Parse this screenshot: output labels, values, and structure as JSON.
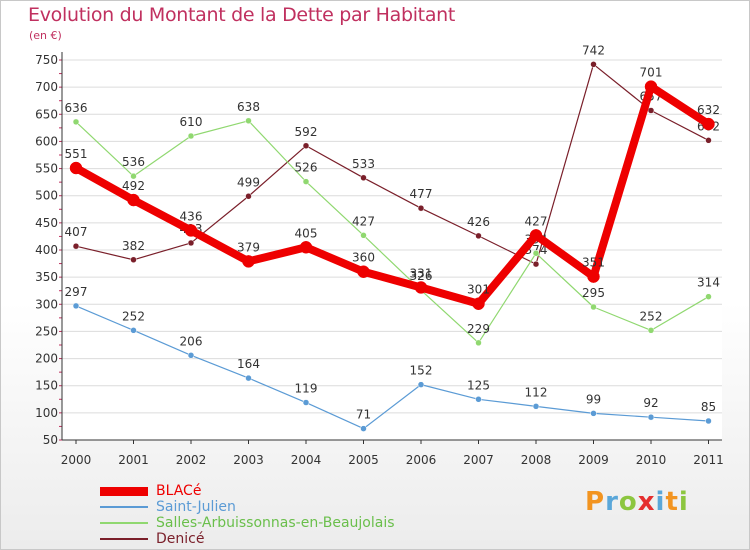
{
  "header": {
    "title": "Evolution du Montant de la Dette par Habitant",
    "unit": "(en €)"
  },
  "logo": {
    "text": "Proxiti",
    "colors": [
      "#f29420",
      "#5aa7d9",
      "#8cc63f",
      "#e52f2f",
      "#5aa7d9",
      "#f29420",
      "#8cc63f"
    ]
  },
  "chart_data": {
    "type": "line",
    "title": "Evolution du Montant de la Dette par Habitant",
    "ylabel": "(en €)",
    "xlabel": "",
    "x": [
      "2000",
      "2001",
      "2002",
      "2003",
      "2004",
      "2005",
      "2006",
      "2007",
      "2008",
      "2009",
      "2010",
      "2011"
    ],
    "ylim": [
      50,
      750
    ],
    "yticks": [
      50,
      100,
      150,
      200,
      250,
      300,
      350,
      400,
      450,
      500,
      550,
      600,
      650,
      700,
      750
    ],
    "grid": "horizontal",
    "legend": "bottom-left",
    "series": [
      {
        "name": "Denicé",
        "color": "#7a1f2a",
        "values": [
          407,
          382,
          413,
          499,
          592,
          533,
          477,
          426,
          374,
          742,
          657,
          602
        ]
      },
      {
        "name": "Salles-Arbuissonnas-en-Beaujolais",
        "color": "#90d870",
        "values": [
          636,
          536,
          610,
          638,
          526,
          427,
          326,
          229,
          394,
          295,
          252,
          314
        ]
      },
      {
        "name": "Saint-Julien",
        "color": "#5b9bd5",
        "values": [
          297,
          252,
          206,
          164,
          119,
          71,
          152,
          125,
          112,
          99,
          92,
          85
        ]
      },
      {
        "name": "BLACé",
        "color": "#ee0000",
        "values": [
          551,
          492,
          436,
          379,
          405,
          360,
          331,
          301,
          427,
          351,
          701,
          632
        ]
      }
    ]
  }
}
